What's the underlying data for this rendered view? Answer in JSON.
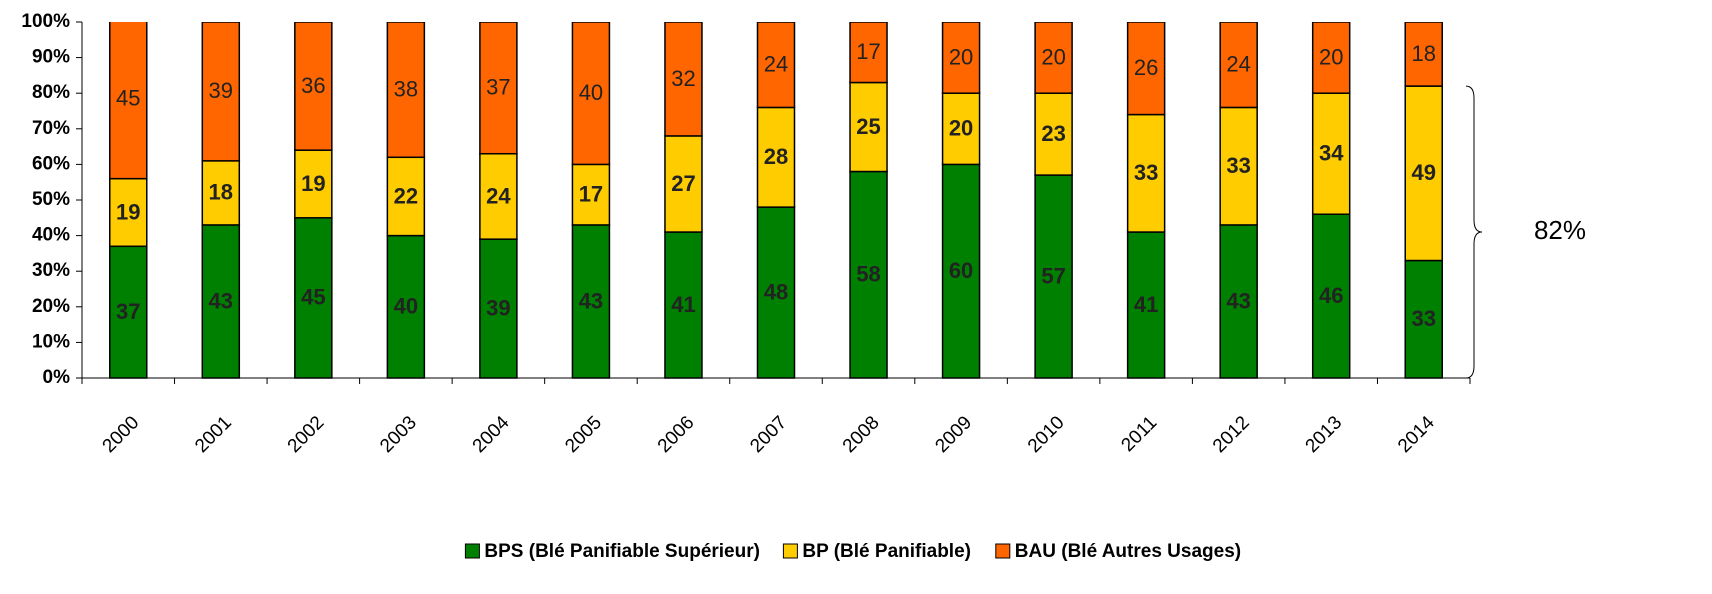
{
  "chart_data": {
    "type": "stacked_bar",
    "categories": [
      "2000",
      "2001",
      "2002",
      "2003",
      "2004",
      "2005",
      "2006",
      "2007",
      "2008",
      "2009",
      "2010",
      "2011",
      "2012",
      "2013",
      "2014"
    ],
    "series": [
      {
        "name": "BPS (Blé Panifiable Supérieur)",
        "color": "#008000",
        "values": [
          37,
          43,
          45,
          40,
          39,
          43,
          41,
          48,
          58,
          60,
          57,
          41,
          43,
          46,
          33
        ]
      },
      {
        "name": "BP (Blé Panifiable)",
        "color": "#ffcc00",
        "values": [
          19,
          18,
          19,
          22,
          24,
          17,
          27,
          28,
          25,
          20,
          23,
          33,
          33,
          34,
          49
        ]
      },
      {
        "name": "BAU (Blé Autres Usages)",
        "color": "#ff6600",
        "values": [
          45,
          39,
          36,
          38,
          37,
          40,
          32,
          24,
          17,
          20,
          20,
          26,
          24,
          20,
          18
        ]
      }
    ],
    "ylim": [
      0,
      100
    ],
    "yticks": [
      {
        "value": 0,
        "label": "0%"
      },
      {
        "value": 10,
        "label": "10%"
      },
      {
        "value": 20,
        "label": "20%"
      },
      {
        "value": 30,
        "label": "30%"
      },
      {
        "value": 40,
        "label": "40%"
      },
      {
        "value": 50,
        "label": "50%"
      },
      {
        "value": 60,
        "label": "60%"
      },
      {
        "value": 70,
        "label": "70%"
      },
      {
        "value": 80,
        "label": "80%"
      },
      {
        "value": 90,
        "label": "90%"
      },
      {
        "value": 100,
        "label": "100%"
      }
    ],
    "annotation": {
      "text": "82%",
      "value": 82
    },
    "legend": "bottom"
  }
}
